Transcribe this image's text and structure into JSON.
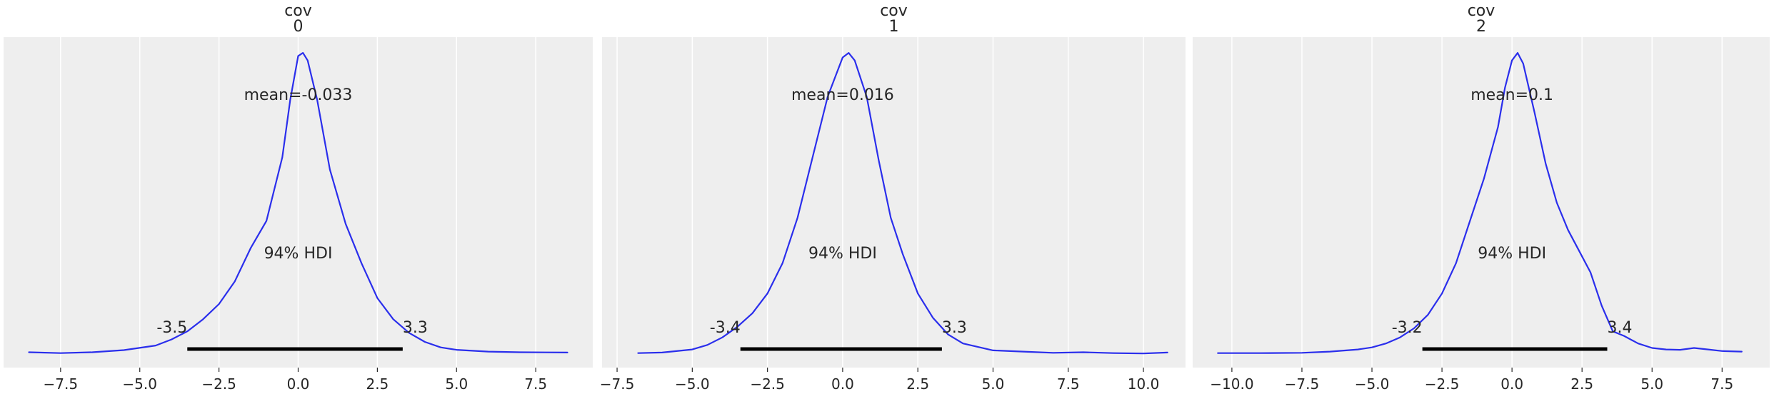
{
  "theme": {
    "panel_bg": "#eeeeee",
    "grid_color": "#ffffff",
    "line_color": "#2a2eec",
    "hdi_color": "#000000"
  },
  "chart_data": [
    {
      "type": "line",
      "title_lines": [
        "cov",
        "0"
      ],
      "xlim": [
        -9.3,
        9.3
      ],
      "xticks": [
        -7.5,
        -5.0,
        -2.5,
        0.0,
        2.5,
        5.0,
        7.5
      ],
      "xtick_labels": [
        "−7.5",
        "−5.0",
        "−2.5",
        "0.0",
        "2.5",
        "5.0",
        "7.5"
      ],
      "grid": true,
      "mean_label": "mean=-0.033",
      "hdi_label": "94% HDI",
      "hdi": [
        -3.5,
        3.3
      ],
      "hdi_low_label": "-3.5",
      "hdi_high_label": "3.3",
      "series": [
        {
          "x": [
            -8.5,
            -7.5,
            -6.5,
            -5.5,
            -4.5,
            -4.0,
            -3.5,
            -3.0,
            -2.5,
            -2.0,
            -1.5,
            -1.0,
            -0.5,
            -0.25,
            0.0,
            0.15,
            0.3,
            0.6,
            1.0,
            1.5,
            2.0,
            2.5,
            3.0,
            3.5,
            4.0,
            4.5,
            5.0,
            6.0,
            7.0,
            8.5
          ],
          "y": [
            0.006,
            0.003,
            0.006,
            0.013,
            0.028,
            0.048,
            0.075,
            0.115,
            0.165,
            0.24,
            0.35,
            0.44,
            0.65,
            0.84,
            0.985,
            0.995,
            0.97,
            0.84,
            0.61,
            0.43,
            0.3,
            0.185,
            0.115,
            0.07,
            0.04,
            0.022,
            0.014,
            0.008,
            0.006,
            0.005
          ]
        }
      ]
    },
    {
      "type": "line",
      "title_lines": [
        "cov",
        "1"
      ],
      "xlim": [
        -8.0,
        11.4
      ],
      "xticks": [
        -7.5,
        -5.0,
        -2.5,
        0.0,
        2.5,
        5.0,
        7.5,
        10.0
      ],
      "xtick_labels": [
        "−7.5",
        "−5.0",
        "−2.5",
        "0.0",
        "2.5",
        "5.0",
        "7.5",
        "10.0"
      ],
      "grid": true,
      "mean_label": "mean=0.016",
      "hdi_label": "94% HDI",
      "hdi": [
        -3.4,
        3.3
      ],
      "hdi_low_label": "-3.4",
      "hdi_high_label": "3.3",
      "series": [
        {
          "x": [
            -6.8,
            -6.0,
            -5.0,
            -4.5,
            -4.0,
            -3.5,
            -3.0,
            -2.5,
            -2.0,
            -1.5,
            -1.0,
            -0.5,
            0.0,
            0.2,
            0.4,
            0.8,
            1.2,
            1.6,
            2.0,
            2.5,
            3.0,
            3.5,
            4.0,
            5.0,
            6.0,
            7.0,
            8.0,
            9.0,
            10.0,
            10.8
          ],
          "y": [
            0.003,
            0.005,
            0.015,
            0.03,
            0.055,
            0.09,
            0.135,
            0.2,
            0.3,
            0.45,
            0.65,
            0.85,
            0.98,
            0.995,
            0.97,
            0.85,
            0.64,
            0.45,
            0.33,
            0.2,
            0.12,
            0.065,
            0.035,
            0.012,
            0.008,
            0.004,
            0.006,
            0.003,
            0.002,
            0.005
          ]
        }
      ]
    },
    {
      "type": "line",
      "title_lines": [
        "cov",
        "2"
      ],
      "xlim": [
        -11.4,
        9.2
      ],
      "xticks": [
        -10.0,
        -7.5,
        -5.0,
        -2.5,
        0.0,
        2.5,
        5.0,
        7.5
      ],
      "xtick_labels": [
        "−10.0",
        "−7.5",
        "−5.0",
        "−2.5",
        "0.0",
        "2.5",
        "5.0",
        "7.5"
      ],
      "grid": true,
      "mean_label": "mean=0.1",
      "hdi_label": "94% HDI",
      "hdi": [
        -3.2,
        3.4
      ],
      "hdi_low_label": "-3.2",
      "hdi_high_label": "3.4",
      "series": [
        {
          "x": [
            -10.5,
            -9.0,
            -7.5,
            -6.5,
            -5.5,
            -5.0,
            -4.5,
            -4.0,
            -3.5,
            -3.0,
            -2.5,
            -2.0,
            -1.5,
            -1.0,
            -0.5,
            -0.25,
            0.0,
            0.2,
            0.4,
            0.8,
            1.2,
            1.6,
            2.0,
            2.4,
            2.8,
            3.2,
            3.6,
            4.0,
            4.5,
            5.0,
            5.5,
            6.0,
            6.5,
            7.0,
            7.5,
            8.2
          ],
          "y": [
            0.003,
            0.003,
            0.004,
            0.008,
            0.015,
            0.022,
            0.035,
            0.055,
            0.085,
            0.13,
            0.2,
            0.3,
            0.44,
            0.58,
            0.75,
            0.88,
            0.97,
            0.995,
            0.96,
            0.8,
            0.63,
            0.5,
            0.41,
            0.34,
            0.27,
            0.16,
            0.075,
            0.06,
            0.035,
            0.02,
            0.015,
            0.014,
            0.02,
            0.015,
            0.01,
            0.008
          ]
        }
      ]
    }
  ]
}
